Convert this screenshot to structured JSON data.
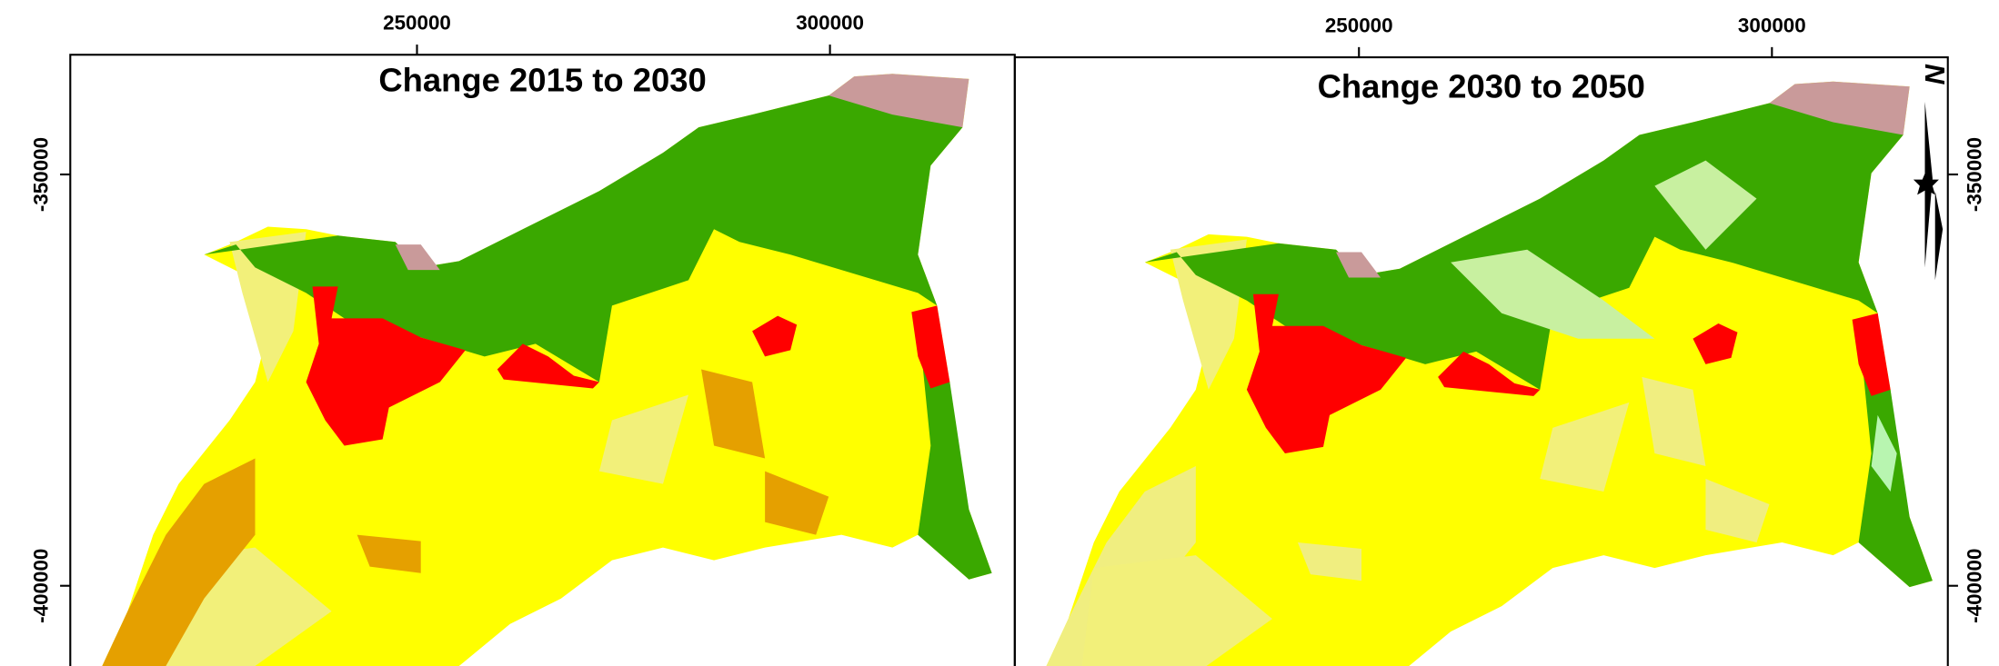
{
  "panels": [
    {
      "title": "Change 2015 to 2030",
      "xticks": [
        250000,
        300000
      ],
      "yticks": [
        -350000,
        -400000
      ],
      "xlim": [
        208025,
        322377
      ],
      "ylim": [
        -409752,
        -335449
      ]
    },
    {
      "title": "Change 2030 to 2050",
      "xticks": [
        250000,
        300000
      ],
      "yticks": [
        -350000,
        -400000
      ],
      "xlim": [
        208333,
        321296
      ],
      "ylim": [
        -409752,
        -335449
      ]
    }
  ],
  "north_arrow": {
    "label": "N"
  }
}
